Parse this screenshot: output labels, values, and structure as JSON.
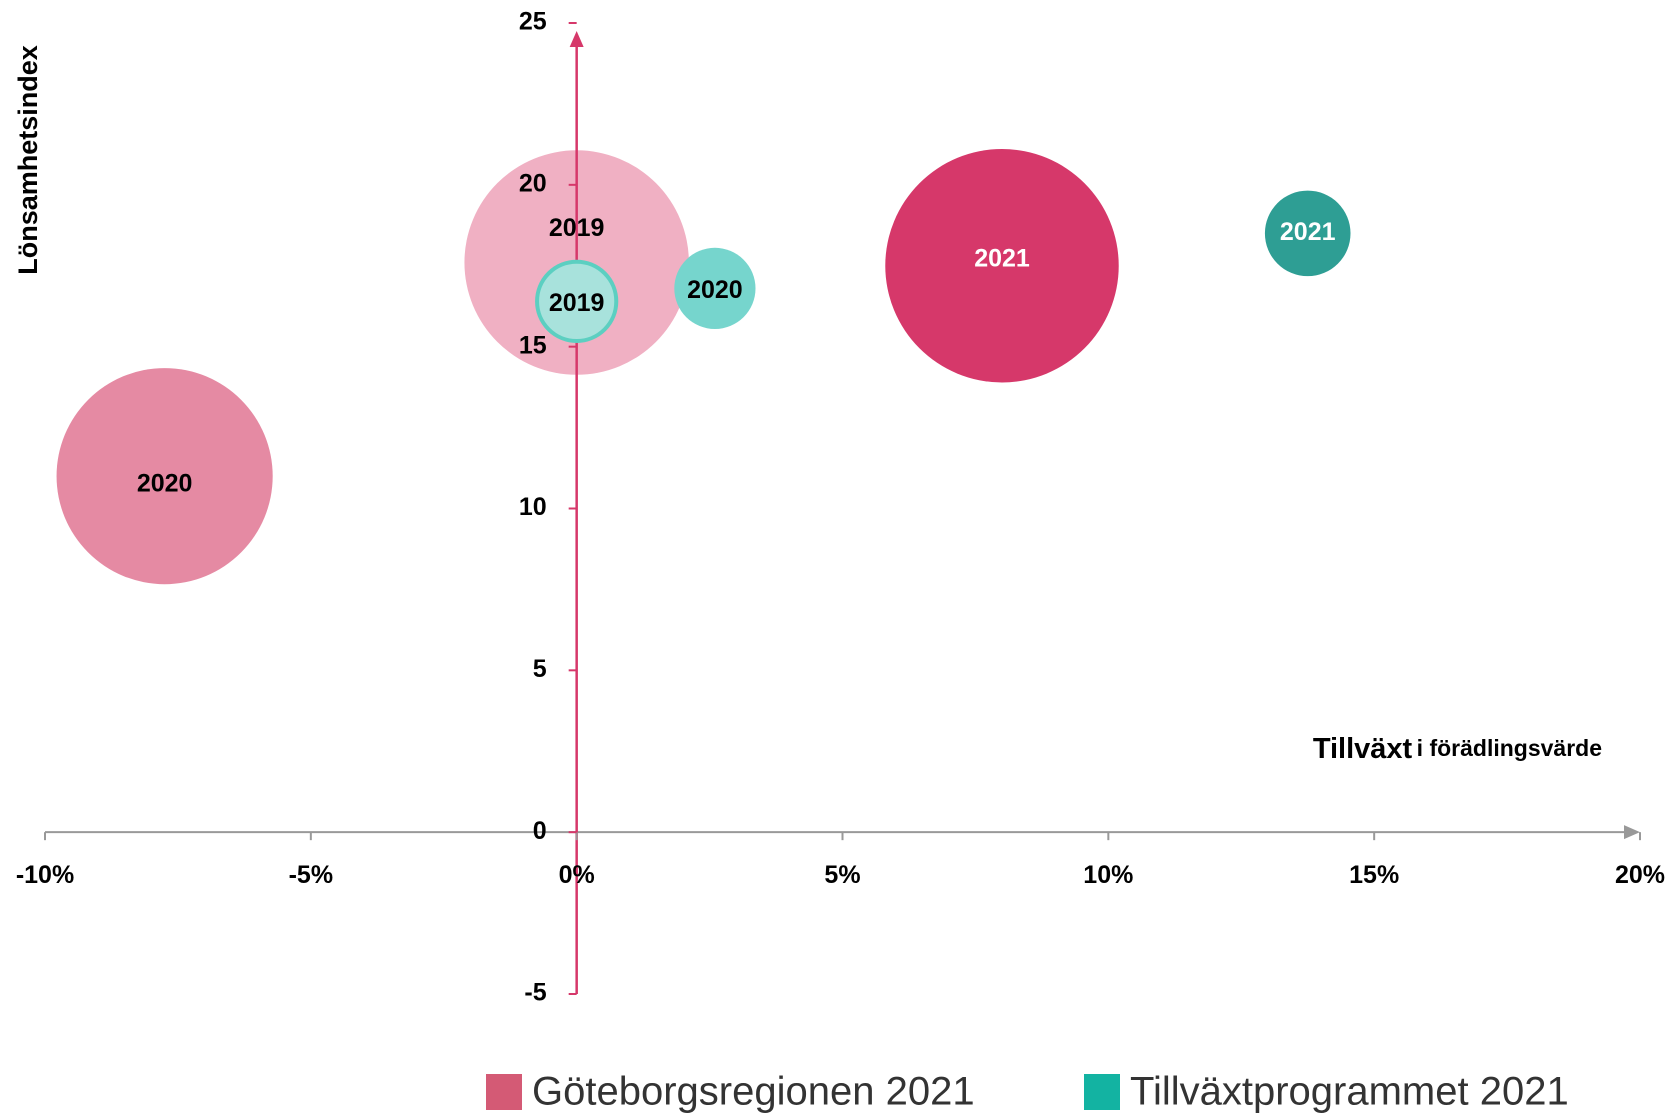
{
  "chart_data": {
    "type": "bubble",
    "y_label": "Lönsamhetsindex",
    "x_label": [
      "Tillväxt",
      "i förädlingsvärde"
    ],
    "xlim": [
      -10,
      20
    ],
    "xticks": [
      {
        "value": -10,
        "label": "-10%"
      },
      {
        "value": -5,
        "label": "-5%"
      },
      {
        "value": 0,
        "label": "0%"
      },
      {
        "value": 5,
        "label": "5%"
      },
      {
        "value": 10,
        "label": "10%"
      },
      {
        "value": 15,
        "label": "15%"
      },
      {
        "value": 20,
        "label": "20%"
      }
    ],
    "ylim": [
      -5,
      25
    ],
    "yticks": [
      -5,
      0,
      5,
      10,
      15,
      20,
      25
    ],
    "grid": false,
    "legend": "bottom",
    "series": [
      {
        "name": "Göteborgsregionen 2021",
        "color": "#d45a75",
        "labels": [
          "2019",
          "2020",
          "2021"
        ],
        "x": [
          0,
          -7.75,
          8.0
        ],
        "values": [
          17.6,
          11.0,
          17.5
        ],
        "sizes": [
          11000,
          10200,
          11900
        ],
        "colors": [
          "#f0b0c3",
          "#e58aa3",
          "#d6386a"
        ],
        "label_colors": [
          "#000000",
          "#000000",
          "#ffffff"
        ]
      },
      {
        "name": "Tillväxtprogrammet 2021",
        "color": "#13b3a2",
        "labels": [
          "2019",
          "2020",
          "2021"
        ],
        "x": [
          0,
          2.6,
          13.75
        ],
        "values": [
          16.4,
          16.8,
          18.5
        ],
        "sizes": [
          1370,
          1440,
          1600
        ],
        "colors": [
          "#a8e2dc",
          "#76d5cd",
          "#2e9e94"
        ],
        "label_colors": [
          "#000000",
          "#000000",
          "#ffffff"
        ]
      }
    ]
  }
}
